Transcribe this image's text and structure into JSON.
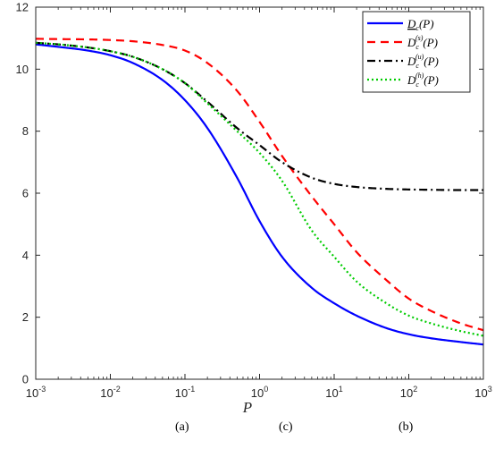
{
  "chart_data": {
    "type": "line",
    "xlabel": "P",
    "ylabel": "",
    "title": "",
    "xscale": "log",
    "xlim": [
      0.001,
      1000
    ],
    "ylim": [
      0,
      12
    ],
    "grid": false,
    "legend_position": "top-right",
    "x_ticks": [
      {
        "base": "10",
        "exp": "-3"
      },
      {
        "base": "10",
        "exp": "-2"
      },
      {
        "base": "10",
        "exp": "-1"
      },
      {
        "base": "10",
        "exp": "0"
      },
      {
        "base": "10",
        "exp": "1"
      },
      {
        "base": "10",
        "exp": "2"
      },
      {
        "base": "10",
        "exp": "3"
      }
    ],
    "y_ticks": [
      "0",
      "2",
      "4",
      "6",
      "8",
      "10",
      "12"
    ],
    "x": [
      0.001,
      0.002,
      0.005,
      0.01,
      0.02,
      0.05,
      0.1,
      0.2,
      0.5,
      1,
      2,
      5,
      10,
      20,
      50,
      100,
      200,
      500,
      1000
    ],
    "series": [
      {
        "name": "D_c(P)",
        "label_main": "D",
        "label_sub": "c",
        "label_sup": "",
        "label_tail": "(P)",
        "underline": true,
        "color": "#0000ff",
        "dash": "solid",
        "values": [
          10.8,
          10.72,
          10.6,
          10.45,
          10.2,
          9.65,
          9.0,
          8.1,
          6.5,
          5.1,
          3.95,
          2.95,
          2.45,
          2.05,
          1.65,
          1.45,
          1.32,
          1.2,
          1.12
        ]
      },
      {
        "name": "D_c^(s)(P)",
        "label_main": "D",
        "label_sub": "c",
        "label_sup": "(s)",
        "label_tail": "(P)",
        "underline": false,
        "color": "#ff0000",
        "dash": "dashed",
        "values": [
          10.98,
          10.97,
          10.96,
          10.94,
          10.9,
          10.78,
          10.6,
          10.2,
          9.3,
          8.3,
          7.2,
          5.9,
          5.0,
          4.1,
          3.2,
          2.6,
          2.2,
          1.8,
          1.58
        ]
      },
      {
        "name": "D_c^(u)(P)",
        "label_main": "D",
        "label_sub": "c",
        "label_sup": "(u)",
        "label_tail": "(P)",
        "underline": false,
        "color": "#000000",
        "dash": "dashdot",
        "values": [
          10.85,
          10.8,
          10.7,
          10.58,
          10.4,
          10.0,
          9.55,
          8.95,
          8.1,
          7.55,
          7.0,
          6.5,
          6.3,
          6.2,
          6.14,
          6.12,
          6.11,
          6.1,
          6.1
        ]
      },
      {
        "name": "D_c^(h)(P)",
        "label_main": "D",
        "label_sub": "c",
        "label_sup": "(h)",
        "label_tail": "(P)",
        "underline": false,
        "color": "#00cc00",
        "dash": "dotted",
        "values": [
          10.85,
          10.8,
          10.7,
          10.58,
          10.4,
          10.0,
          9.55,
          8.9,
          8.0,
          7.3,
          6.4,
          4.8,
          3.95,
          3.15,
          2.45,
          2.05,
          1.8,
          1.55,
          1.4
        ]
      }
    ]
  },
  "captions": [
    {
      "text": "(a)"
    },
    {
      "text": "(c)"
    },
    {
      "text": "(b)"
    }
  ]
}
